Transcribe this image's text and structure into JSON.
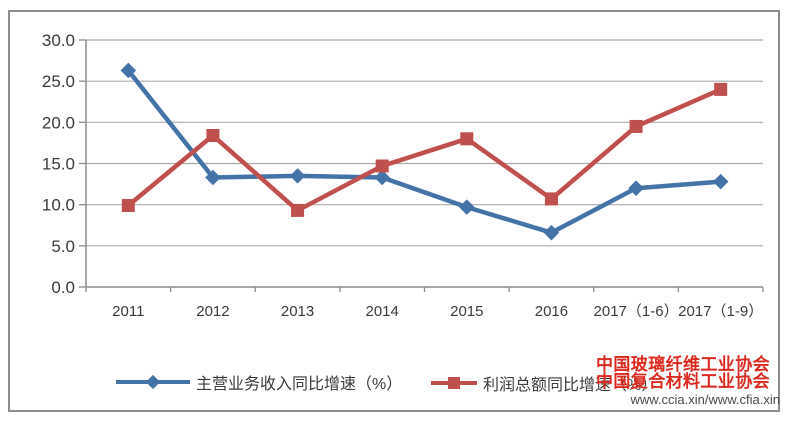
{
  "chart_data": {
    "type": "line",
    "title": "",
    "xlabel": "",
    "ylabel": "",
    "categories": [
      "2011",
      "2012",
      "2013",
      "2014",
      "2015",
      "2016",
      "2017（1-6）",
      "2017（1-9）"
    ],
    "series": [
      {
        "name": "主营业务收入同比增速（%）",
        "values": [
          26.3,
          13.3,
          13.5,
          13.3,
          9.7,
          6.6,
          12.0,
          12.8
        ],
        "color": "#4473a8",
        "marker": "diamond"
      },
      {
        "name": "利润总额同比增速（%）",
        "values": [
          9.9,
          18.4,
          9.3,
          14.7,
          18.0,
          10.7,
          19.5,
          24.0
        ],
        "color": "#c0504d",
        "marker": "square"
      }
    ],
    "ylim": [
      0,
      30
    ],
    "ytick_step": 5,
    "ytick_labels": [
      "0.0",
      "5.0",
      "10.0",
      "15.0",
      "20.0",
      "25.0",
      "30.0"
    ],
    "grid": true,
    "legend_position": "bottom"
  },
  "legend": {
    "items": [
      {
        "label": "主营业务收入同比增速（%）"
      },
      {
        "label": "利润总额同比增速（%）"
      }
    ]
  },
  "watermark": {
    "line1": "中国玻璃纤维工业协会",
    "line2": "中国复合材料工业协会",
    "line3": "www.ccia.xin/www.cfia.xin",
    "color": "#dd2a20"
  },
  "colors": {
    "series1": "#4473a8",
    "series2": "#c0504d",
    "grid": "#ababab",
    "axis": "#8c8c8c",
    "frame": "#8c8c8c",
    "tick_text": "#3b3b3b"
  }
}
